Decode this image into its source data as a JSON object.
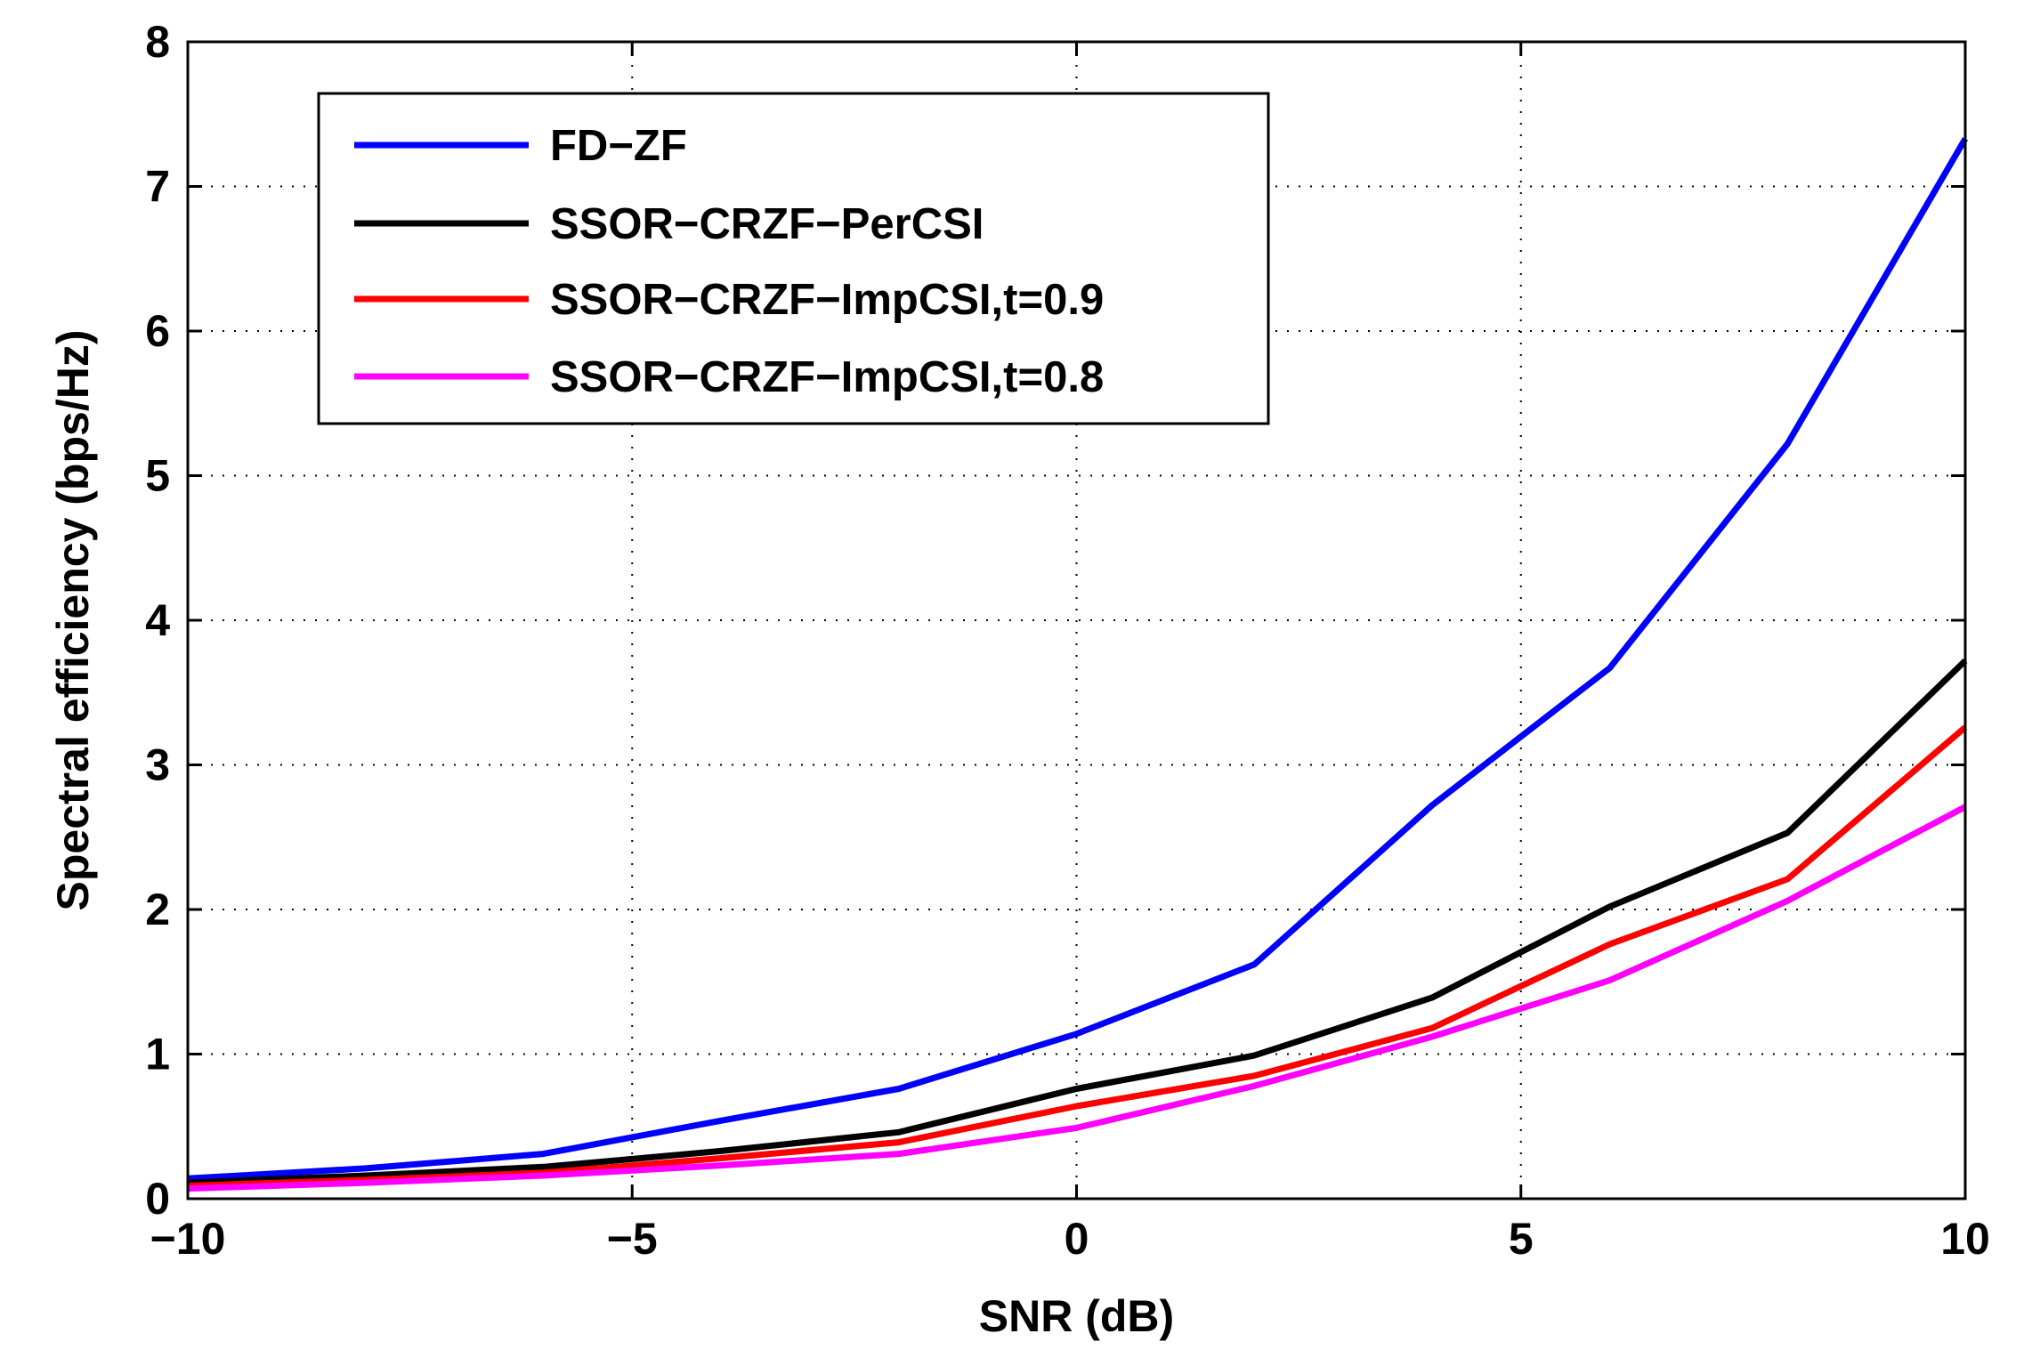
{
  "chart_data": {
    "type": "line",
    "title": "",
    "xlabel": "SNR (dB)",
    "ylabel": "Spectral efficiency (bps/Hz)",
    "xlim": [
      -10,
      10
    ],
    "ylim": [
      0,
      8
    ],
    "xticks": [
      -10,
      -5,
      0,
      5,
      10
    ],
    "xtick_labels": [
      "−10",
      "−5",
      "0",
      "5",
      "10"
    ],
    "yticks": [
      0,
      1,
      2,
      3,
      4,
      5,
      6,
      7,
      8
    ],
    "ytick_labels": [
      "0",
      "1",
      "2",
      "3",
      "4",
      "5",
      "6",
      "7",
      "8"
    ],
    "grid": true,
    "legend_position": "top-left",
    "x": [
      -10,
      -8,
      -6,
      -4,
      -2,
      0,
      2,
      4,
      6,
      8,
      10
    ],
    "series": [
      {
        "name": "FD−ZF",
        "color": "#0000ff",
        "values": [
          0.14,
          0.21,
          0.31,
          0.54,
          0.76,
          1.14,
          1.62,
          2.72,
          3.67,
          5.22,
          7.33
        ]
      },
      {
        "name": "SSOR−CRZF−PerCSI",
        "color": "#000000",
        "values": [
          0.11,
          0.16,
          0.22,
          0.33,
          0.46,
          0.76,
          0.99,
          1.39,
          2.02,
          2.53,
          3.72
        ]
      },
      {
        "name": "SSOR−CRZF−ImpCSI,t=0.9",
        "color": "#ff0000",
        "values": [
          0.09,
          0.13,
          0.18,
          0.28,
          0.39,
          0.64,
          0.85,
          1.18,
          1.76,
          2.21,
          3.26
        ]
      },
      {
        "name": "SSOR−CRZF−ImpCSI,t=0.8",
        "color": "#ff00ff",
        "values": [
          0.07,
          0.11,
          0.16,
          0.23,
          0.31,
          0.49,
          0.78,
          1.12,
          1.51,
          2.06,
          2.71
        ]
      }
    ]
  }
}
